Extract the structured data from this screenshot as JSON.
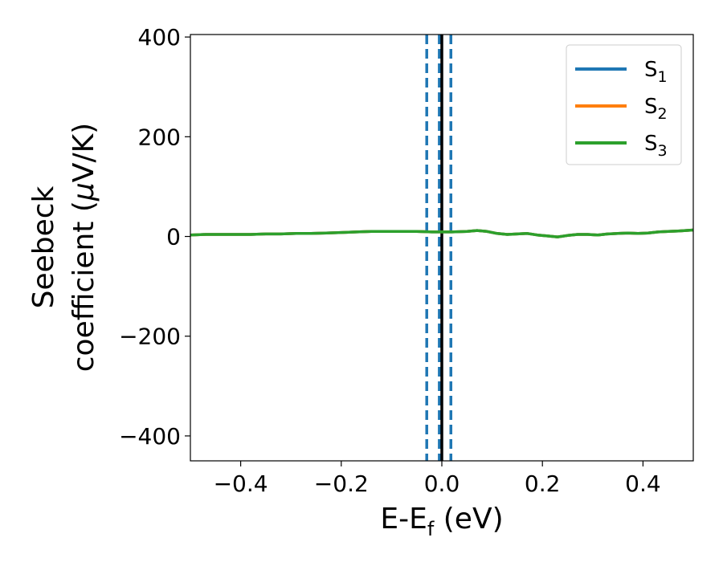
{
  "chart_data": {
    "type": "line",
    "xlabel": {
      "base": "E-E",
      "sub": "f",
      "tail": " (eV)"
    },
    "ylabel": {
      "line1": "Seebeck",
      "line2_prefix": "coefficient  (",
      "mu": "μ",
      "line2_suffix": "V/K)"
    },
    "xlim": [
      -0.5,
      0.5
    ],
    "ylim": [
      -450,
      405
    ],
    "x_ticks": [
      {
        "value": -0.4,
        "label": "−0.4"
      },
      {
        "value": -0.2,
        "label": "−0.2"
      },
      {
        "value": 0.0,
        "label": "0.0"
      },
      {
        "value": 0.2,
        "label": "0.2"
      },
      {
        "value": 0.4,
        "label": "0.4"
      }
    ],
    "y_ticks": [
      {
        "value": 400,
        "label": "400"
      },
      {
        "value": 200,
        "label": "200"
      },
      {
        "value": 0,
        "label": "0"
      },
      {
        "value": -200,
        "label": "−200"
      },
      {
        "value": -400,
        "label": "−400"
      }
    ],
    "grid": false,
    "legend_position": "top-right",
    "x": [
      -0.5,
      -0.47,
      -0.44,
      -0.41,
      -0.38,
      -0.35,
      -0.32,
      -0.29,
      -0.26,
      -0.23,
      -0.2,
      -0.17,
      -0.14,
      -0.11,
      -0.08,
      -0.05,
      -0.02,
      0.0,
      0.02,
      0.05,
      0.07,
      0.09,
      0.11,
      0.13,
      0.15,
      0.17,
      0.19,
      0.21,
      0.23,
      0.25,
      0.27,
      0.29,
      0.31,
      0.33,
      0.35,
      0.37,
      0.39,
      0.41,
      0.43,
      0.45,
      0.47,
      0.5
    ],
    "series": [
      {
        "name": "S",
        "sub": "1",
        "color": "#1f77b4",
        "values": [
          3,
          4,
          4,
          4,
          4,
          5,
          5,
          6,
          6,
          7,
          8,
          9,
          10,
          10,
          10,
          10,
          9,
          9,
          9,
          10,
          12,
          10,
          6,
          4,
          5,
          6,
          3,
          1,
          -1,
          2,
          4,
          4,
          3,
          5,
          6,
          7,
          6,
          7,
          9,
          10,
          11,
          13
        ]
      },
      {
        "name": "S",
        "sub": "2",
        "color": "#ff7f0e",
        "values": [
          3,
          4,
          4,
          4,
          4,
          5,
          5,
          6,
          6,
          7,
          8,
          9,
          10,
          10,
          10,
          10,
          9,
          9,
          9,
          10,
          12,
          10,
          6,
          4,
          5,
          6,
          3,
          1,
          -1,
          2,
          4,
          4,
          3,
          5,
          6,
          7,
          6,
          7,
          9,
          10,
          11,
          13
        ]
      },
      {
        "name": "S",
        "sub": "3",
        "color": "#2ca02c",
        "values": [
          3,
          4,
          4,
          4,
          4,
          5,
          5,
          6,
          6,
          7,
          8,
          9,
          10,
          10,
          10,
          10,
          9,
          9,
          9,
          10,
          12,
          10,
          6,
          4,
          5,
          6,
          3,
          1,
          -1,
          2,
          4,
          4,
          3,
          5,
          6,
          7,
          6,
          7,
          9,
          10,
          11,
          13
        ]
      }
    ],
    "reference_lines": [
      {
        "x": -0.03,
        "style": "dashed",
        "color": "#1f77b4"
      },
      {
        "x": -0.005,
        "style": "dashed",
        "color": "#1f77b4"
      },
      {
        "x": 0.018,
        "style": "dashed",
        "color": "#1f77b4"
      },
      {
        "x": 0.0,
        "style": "solid",
        "color": "#000000"
      }
    ]
  }
}
